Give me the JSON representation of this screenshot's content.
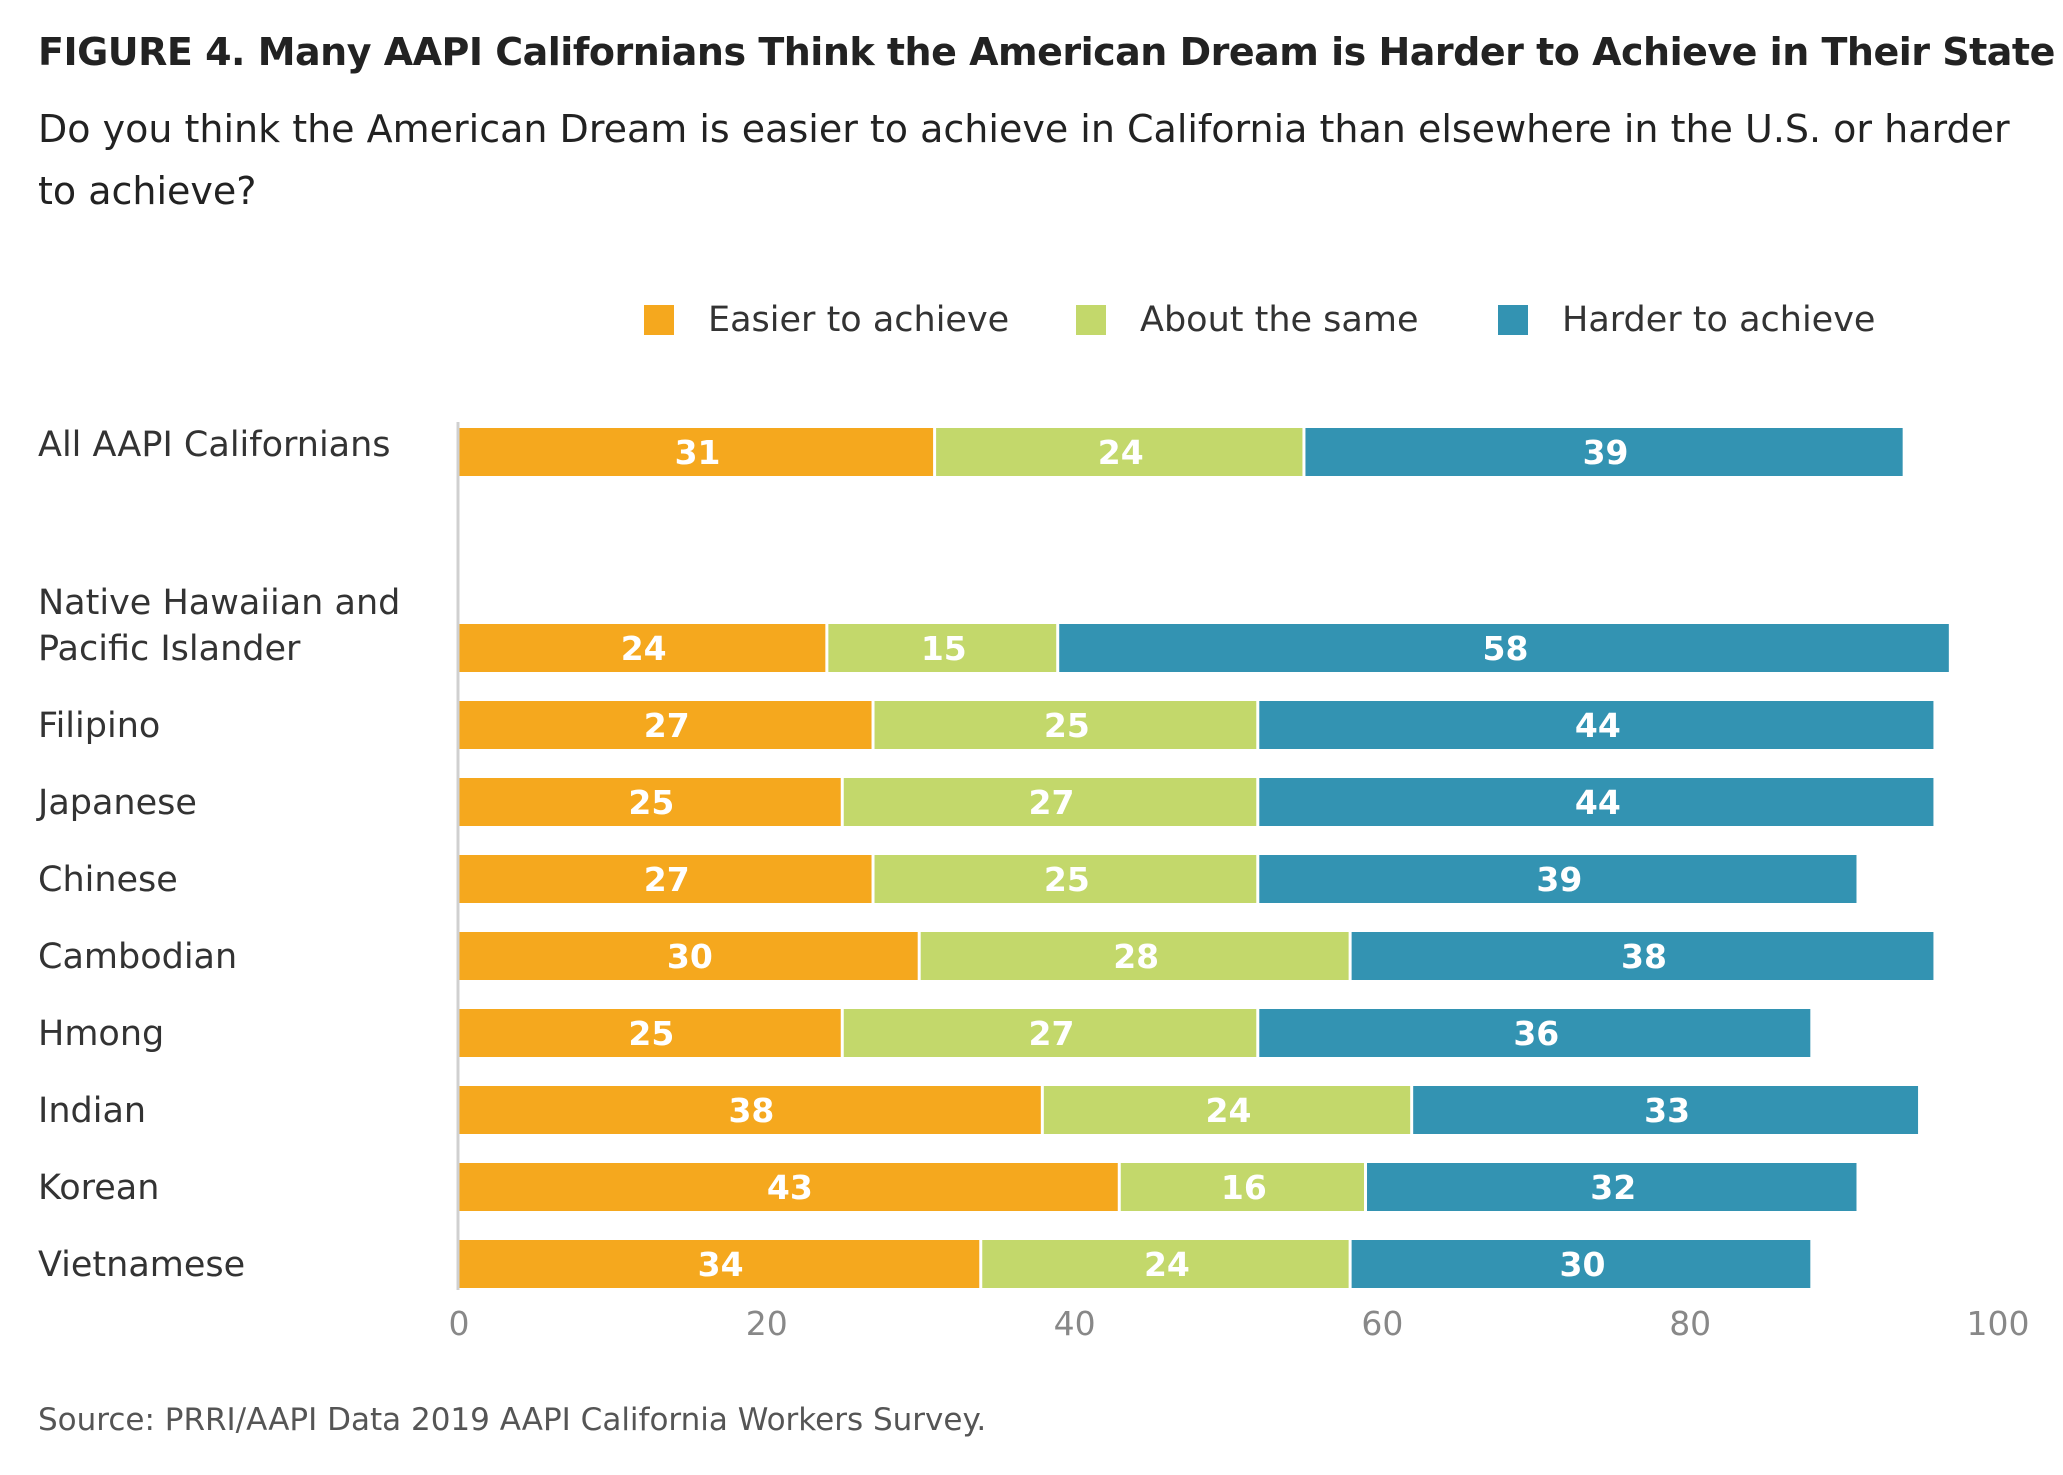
{
  "title": "FIGURE 4. Many AAPI Californians Think the American Dream is Harder to Achieve in Their State",
  "subtitle": "Do you think the American Dream is easier to achieve in California than elsewhere in the U.S. or harder to achieve?",
  "source": "Source: PRRI/AAPI Data 2019 AAPI California Workers Survey.",
  "chart_data": {
    "type": "bar",
    "orientation": "horizontal",
    "stacked": true,
    "categories": [
      [
        "All AAPI Californians"
      ],
      [
        "Native Hawaiian and",
        "Pacific Islander"
      ],
      [
        "Filipino"
      ],
      [
        "Japanese"
      ],
      [
        "Chinese"
      ],
      [
        "Cambodian"
      ],
      [
        "Hmong"
      ],
      [
        "Indian"
      ],
      [
        "Korean"
      ],
      [
        "Vietnamese"
      ]
    ],
    "series": [
      {
        "name": "Easier to achieve",
        "color": "#F5A81E",
        "values": [
          31,
          24,
          27,
          25,
          27,
          30,
          25,
          38,
          43,
          34
        ]
      },
      {
        "name": "About the same",
        "color": "#C3D86B",
        "values": [
          24,
          15,
          25,
          27,
          25,
          28,
          27,
          24,
          16,
          24
        ]
      },
      {
        "name": "Harder to achieve",
        "color": "#3393B2",
        "values": [
          39,
          58,
          44,
          44,
          39,
          38,
          36,
          33,
          32,
          30
        ]
      }
    ],
    "xlim": [
      0,
      100
    ],
    "xticks": [
      0,
      20,
      40,
      60,
      80,
      100
    ],
    "legend_position": "top",
    "grid": false
  }
}
